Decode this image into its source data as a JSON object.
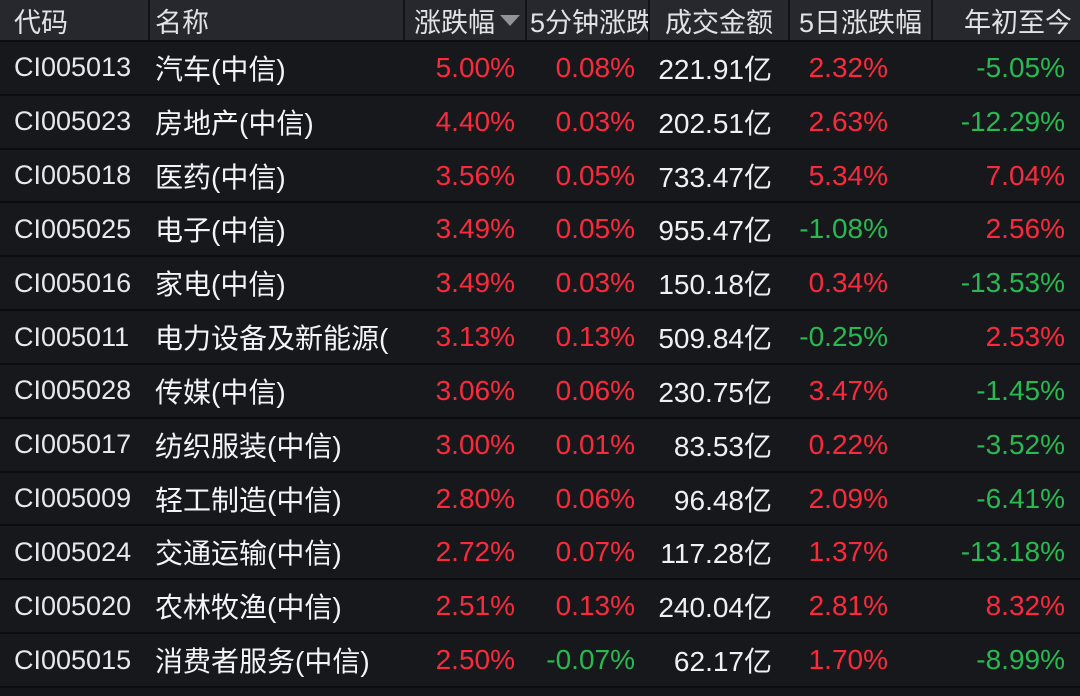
{
  "table": {
    "columns": [
      {
        "key": "code",
        "label": "代码"
      },
      {
        "key": "name",
        "label": "名称"
      },
      {
        "key": "change",
        "label": "涨跌幅"
      },
      {
        "key": "min5",
        "label": "5分钟涨跌"
      },
      {
        "key": "turnover",
        "label": "成交金额"
      },
      {
        "key": "day5",
        "label": "5日涨跌幅"
      },
      {
        "key": "ytd",
        "label": "年初至今"
      }
    ],
    "sort": {
      "column": "涨跌幅",
      "direction": "desc",
      "icon": "triangle-down"
    },
    "rows": [
      {
        "code": "CI005013",
        "name": "汽车(中信)",
        "change": "5.00%",
        "min5": "0.08%",
        "turnover": "221.91亿",
        "day5": "2.32%",
        "ytd": "-5.05%"
      },
      {
        "code": "CI005023",
        "name": "房地产(中信)",
        "change": "4.40%",
        "min5": "0.03%",
        "turnover": "202.51亿",
        "day5": "2.63%",
        "ytd": "-12.29%"
      },
      {
        "code": "CI005018",
        "name": "医药(中信)",
        "change": "3.56%",
        "min5": "0.05%",
        "turnover": "733.47亿",
        "day5": "5.34%",
        "ytd": "7.04%"
      },
      {
        "code": "CI005025",
        "name": "电子(中信)",
        "change": "3.49%",
        "min5": "0.05%",
        "turnover": "955.47亿",
        "day5": "-1.08%",
        "ytd": "2.56%"
      },
      {
        "code": "CI005016",
        "name": "家电(中信)",
        "change": "3.49%",
        "min5": "0.03%",
        "turnover": "150.18亿",
        "day5": "0.34%",
        "ytd": "-13.53%"
      },
      {
        "code": "CI005011",
        "name": "电力设备及新能源(",
        "change": "3.13%",
        "min5": "0.13%",
        "turnover": "509.84亿",
        "day5": "-0.25%",
        "ytd": "2.53%"
      },
      {
        "code": "CI005028",
        "name": "传媒(中信)",
        "change": "3.06%",
        "min5": "0.06%",
        "turnover": "230.75亿",
        "day5": "3.47%",
        "ytd": "-1.45%"
      },
      {
        "code": "CI005017",
        "name": "纺织服装(中信)",
        "change": "3.00%",
        "min5": "0.01%",
        "turnover": "83.53亿",
        "day5": "0.22%",
        "ytd": "-3.52%"
      },
      {
        "code": "CI005009",
        "name": "轻工制造(中信)",
        "change": "2.80%",
        "min5": "0.06%",
        "turnover": "96.48亿",
        "day5": "2.09%",
        "ytd": "-6.41%"
      },
      {
        "code": "CI005024",
        "name": "交通运输(中信)",
        "change": "2.72%",
        "min5": "0.07%",
        "turnover": "117.28亿",
        "day5": "1.37%",
        "ytd": "-13.18%"
      },
      {
        "code": "CI005020",
        "name": "农林牧渔(中信)",
        "change": "2.51%",
        "min5": "0.13%",
        "turnover": "240.04亿",
        "day5": "2.81%",
        "ytd": "8.32%"
      },
      {
        "code": "CI005015",
        "name": "消费者服务(中信)",
        "change": "2.50%",
        "min5": "-0.07%",
        "turnover": "62.17亿",
        "day5": "1.70%",
        "ytd": "-8.99%"
      }
    ]
  },
  "colors": {
    "up": "#fa2a3c",
    "down": "#26ba50",
    "neutral": "#eef0f3",
    "row-bg": "#17181c",
    "header-bg": "#27282d"
  }
}
